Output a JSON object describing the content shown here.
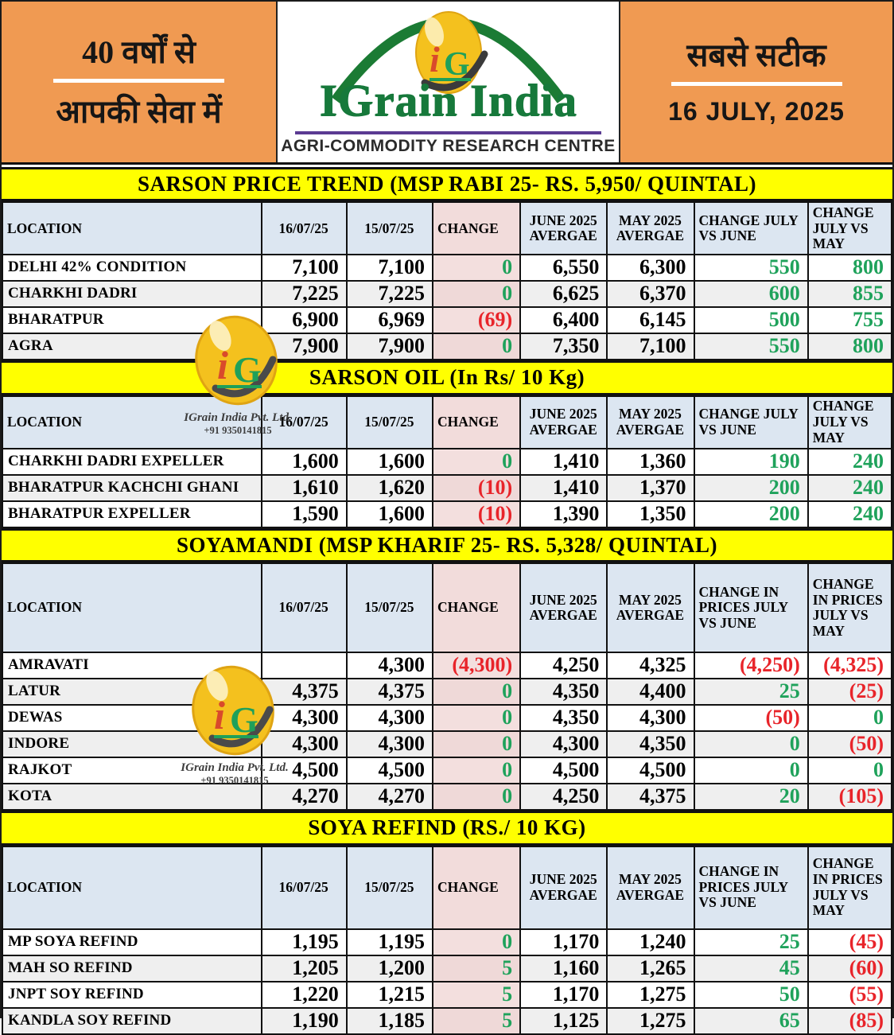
{
  "header": {
    "left": {
      "line1": "40 वर्षों से",
      "line2": "आपकी सेवा में"
    },
    "logo": {
      "title": "IGrain India",
      "subtitle": "AGRI-COMMODITY RESEARCH CENTRE",
      "monogram_i": "i",
      "monogram_g": "G"
    },
    "right": {
      "tagline": "सबसे सटीक",
      "date": "16 JULY, 2025"
    }
  },
  "watermark": {
    "company": "IGrain India Pvt. Ltd.",
    "phone": "+91 9350141815",
    "monogram_i": "i",
    "monogram_g": "G"
  },
  "colors": {
    "masthead_orange": "#F09A52",
    "band_yellow": "#FFFF00",
    "header_blue": "#DCE6F1",
    "change_pink": "#F2DCDB",
    "positive_green": "#1FA25B",
    "negative_red": "#E8242A",
    "brand_green": "#17793B",
    "rule_purple": "#5B3B92",
    "egg_yellow": "#F4C11E"
  },
  "tables": [
    {
      "title": "SARSON PRICE TREND (MSP RABI 25- RS. 5,950/ QUINTAL)",
      "columns": [
        "LOCATION",
        "16/07/25",
        "15/07/25",
        "CHANGE",
        "JUNE 2025 AVERGAE",
        "MAY 2025 AVERGAE",
        "CHANGE JULY VS JUNE",
        "CHANGE JULY VS MAY"
      ],
      "rows": [
        [
          "DELHI 42% CONDITION",
          "7,100",
          "7,100",
          "0",
          "6,550",
          "6,300",
          "550",
          "800"
        ],
        [
          "CHARKHI DADRI",
          "7,225",
          "7,225",
          "0",
          "6,625",
          "6,370",
          "600",
          "855"
        ],
        [
          "BHARATPUR",
          "6,900",
          "6,969",
          "(69)",
          "6,400",
          "6,145",
          "500",
          "755"
        ],
        [
          "AGRA",
          "7,900",
          "7,900",
          "0",
          "7,350",
          "7,100",
          "550",
          "800"
        ]
      ]
    },
    {
      "title": "SARSON OIL (In Rs/ 10 Kg)",
      "columns": [
        "LOCATION",
        "16/07/25",
        "15/07/25",
        "CHANGE",
        "JUNE 2025 AVERGAE",
        "MAY 2025 AVERGAE",
        "CHANGE JULY VS JUNE",
        "CHANGE JULY VS MAY"
      ],
      "rows": [
        [
          "CHARKHI DADRI EXPELLER",
          "1,600",
          "1,600",
          "0",
          "1,410",
          "1,360",
          "190",
          "240"
        ],
        [
          "BHARATPUR KACHCHI GHANI",
          "1,610",
          "1,620",
          "(10)",
          "1,410",
          "1,370",
          "200",
          "240"
        ],
        [
          "BHARATPUR EXPELLER",
          "1,590",
          "1,600",
          "(10)",
          "1,390",
          "1,350",
          "200",
          "240"
        ]
      ]
    },
    {
      "title": "SOYAMANDI (MSP KHARIF 25- RS. 5,328/ QUINTAL)",
      "columns": [
        "LOCATION",
        "16/07/25",
        "15/07/25",
        "CHANGE",
        "JUNE 2025 AVERGAE",
        "MAY 2025 AVERGAE",
        "CHANGE IN PRICES JULY VS JUNE",
        "CHANGE IN PRICES JULY VS MAY"
      ],
      "rows": [
        [
          "AMRAVATI",
          "",
          "4,300",
          "(4,300)",
          "4,250",
          "4,325",
          "(4,250)",
          "(4,325)"
        ],
        [
          "LATUR",
          "4,375",
          "4,375",
          "0",
          "4,350",
          "4,400",
          "25",
          "(25)"
        ],
        [
          "DEWAS",
          "4,300",
          "4,300",
          "0",
          "4,350",
          "4,300",
          "(50)",
          "0"
        ],
        [
          "INDORE",
          "4,300",
          "4,300",
          "0",
          "4,300",
          "4,350",
          "0",
          "(50)"
        ],
        [
          "RAJKOT",
          "4,500",
          "4,500",
          "0",
          "4,500",
          "4,500",
          "0",
          "0"
        ],
        [
          "KOTA",
          "4,270",
          "4,270",
          "0",
          "4,250",
          "4,375",
          "20",
          "(105)"
        ]
      ]
    },
    {
      "title": "SOYA REFIND (RS./ 10 KG)",
      "columns": [
        "LOCATION",
        "16/07/25",
        "15/07/25",
        "CHANGE",
        "JUNE 2025 AVERGAE",
        "MAY 2025 AVERGAE",
        "CHANGE IN PRICES JULY VS JUNE",
        "CHANGE IN PRICES JULY VS MAY"
      ],
      "rows": [
        [
          "MP SOYA REFIND",
          "1,195",
          "1,195",
          "0",
          "1,170",
          "1,240",
          "25",
          "(45)"
        ],
        [
          "MAH SO REFIND",
          "1,205",
          "1,200",
          "5",
          "1,160",
          "1,265",
          "45",
          "(60)"
        ],
        [
          "JNPT SOY REFIND",
          "1,220",
          "1,215",
          "5",
          "1,170",
          "1,275",
          "50",
          "(55)"
        ],
        [
          "KANDLA SOY REFIND",
          "1,190",
          "1,185",
          "5",
          "1,125",
          "1,275",
          "65",
          "(85)"
        ]
      ]
    }
  ]
}
